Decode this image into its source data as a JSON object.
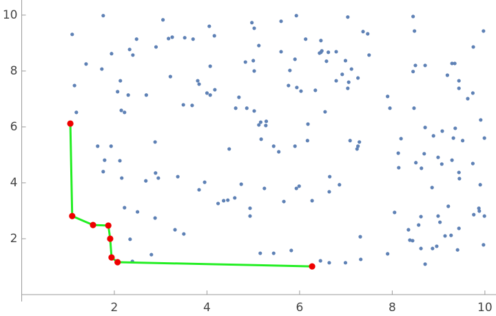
{
  "chart_data": {
    "type": "scatter",
    "xlim": [
      0,
      10.24
    ],
    "ylim": [
      0,
      10.54
    ],
    "xticks": [
      2,
      4,
      6,
      8,
      10
    ],
    "yticks": [
      2,
      4,
      6,
      8,
      10
    ],
    "series": [
      {
        "type": "scatter",
        "color": "#5e81b5",
        "x": [
          1.09,
          1.14,
          1.18,
          1.39,
          1.73,
          1.76,
          1.94,
          2.13,
          2.07,
          2.15,
          2.22,
          2.3,
          2.33,
          2.4,
          2.48,
          2.69,
          2.9,
          3.05,
          3.17,
          3.25,
          3.21,
          3.52,
          3.7,
          3.8,
          3.83,
          3.49,
          3.68,
          4.0,
          4.07,
          4.17,
          4.05,
          4.16,
          4.07,
          4.62,
          4.69,
          4.86,
          4.83,
          4.97,
          5.02,
          5.0,
          5.02,
          5.02,
          5.12,
          5.12,
          5.16,
          5.28,
          5.27,
          5.17,
          5.44,
          5.55,
          5.6,
          5.6,
          5.79,
          5.76,
          5.9,
          5.93,
          5.94,
          6.03,
          6.13,
          6.18,
          6.17,
          5.9,
          6.34,
          6.46,
          6.46,
          6.43,
          6.48,
          6.58,
          6.62,
          6.55,
          6.79,
          6.79,
          6.92,
          6.99,
          7.04,
          7.06,
          7.04,
          7.12,
          7.26,
          7.37,
          7.47,
          7.5,
          7.09,
          7.29,
          7.26,
          7.24,
          7.9,
          7.95,
          8.19,
          8.14,
          8.13,
          8.45,
          8.48,
          8.5,
          8.45,
          8.71,
          8.47,
          8.71,
          8.51,
          8.63,
          8.69,
          8.89,
          8.99,
          9.07,
          9.08,
          9.19,
          9.35,
          9.29,
          9.44,
          9.44,
          9.36,
          9.32,
          9.52,
          9.29,
          9.44,
          9.45,
          9.63,
          9.75,
          9.74,
          9.74,
          9.91,
          9.97,
          9.99,
          9.9,
          9.87,
          9.88,
          9.76,
          9.99,
          9.97,
          9.21,
          8.86,
          8.99,
          9.03,
          9.14,
          9.27,
          9.44,
          9.41,
          8.96,
          8.87,
          8.62,
          8.57,
          8.62,
          8.71,
          8.35,
          8.38,
          8.44,
          8.05,
          7.9,
          7.31,
          7.32,
          6.99,
          6.64,
          6.45,
          6.27,
          5.66,
          5.82,
          5.44,
          5.15,
          5.24,
          5.93,
          5.99,
          6.86,
          6.64,
          6.65,
          4.93,
          4.93,
          4.74,
          4.6,
          4.45,
          4.36,
          4.24,
          3.95,
          3.83,
          4.48,
          3.37,
          2.89,
          2.95,
          2.68,
          2.88,
          2.88,
          3.31,
          3.5,
          2.5,
          2.22,
          2.16,
          2.12,
          1.93,
          1.64,
          1.79,
          1.76,
          2.34,
          2.39,
          2.8
        ],
        "values": [
          9.31,
          7.48,
          6.52,
          8.25,
          8.07,
          9.98,
          8.62,
          7.65,
          7.26,
          6.59,
          6.52,
          7.14,
          8.77,
          8.57,
          9.14,
          7.14,
          8.86,
          9.83,
          9.16,
          9.21,
          7.8,
          9.19,
          9.14,
          7.65,
          7.53,
          6.79,
          6.77,
          7.21,
          7.14,
          7.33,
          9.6,
          9.26,
          8.17,
          6.67,
          7.06,
          6.67,
          8.32,
          9.73,
          9.53,
          8.37,
          8.0,
          6.57,
          8.91,
          6.07,
          6.17,
          6.2,
          6.05,
          5.56,
          5.31,
          5.11,
          9.78,
          8.69,
          8.02,
          7.48,
          8.42,
          9.98,
          7.41,
          7.28,
          9.14,
          6.1,
          5.51,
          5.31,
          7.31,
          9.09,
          8.67,
          8.64,
          8.72,
          8.35,
          8.67,
          6.54,
          8.69,
          7.65,
          7.88,
          8.37,
          9.93,
          7.6,
          7.38,
          8.07,
          7.75,
          9.41,
          9.33,
          8.57,
          5.51,
          5.46,
          5.31,
          5.21,
          7.09,
          6.67,
          5.58,
          4.54,
          5.06,
          9.95,
          9.43,
          8.2,
          7.98,
          8.2,
          6.67,
          5.98,
          4.72,
          4.52,
          5.04,
          5.68,
          4.91,
          4.67,
          5.85,
          7.85,
          8.27,
          8.27,
          7.65,
          7.38,
          5.95,
          5.6,
          5.51,
          4.81,
          4.37,
          4.15,
          7.01,
          8.86,
          7.21,
          4.69,
          6.25,
          9.43,
          5.6,
          3.93,
          3.09,
          2.99,
          2.86,
          2.81,
          1.78,
          3.16,
          3.83,
          2.81,
          2.59,
          2.1,
          2.12,
          2.37,
          1.6,
          1.73,
          1.65,
          2.79,
          2.49,
          1.65,
          1.09,
          2.32,
          1.95,
          1.93,
          2.94,
          1.46,
          2.07,
          1.26,
          1.14,
          1.14,
          1.21,
          3.36,
          3.33,
          1.58,
          1.48,
          1.48,
          3.8,
          3.8,
          3.88,
          3.93,
          3.68,
          4.22,
          3.09,
          2.81,
          3.95,
          3.46,
          3.38,
          3.36,
          3.26,
          4.02,
          3.75,
          5.21,
          4.22,
          4.35,
          4.17,
          4.07,
          5.46,
          2.74,
          2.32,
          2.17,
          2.96,
          3.11,
          4.17,
          4.79,
          5.31,
          5.31,
          4.81,
          4.4,
          1.98,
          1.19,
          1.43
        ]
      },
      {
        "type": "line",
        "color": "#22ee22",
        "marker_color": "#ee0000",
        "x": [
          1.05,
          1.09,
          1.54,
          1.87,
          1.91,
          1.94,
          2.07,
          6.27
        ],
        "values": [
          6.12,
          2.81,
          2.49,
          2.47,
          2.0,
          1.33,
          1.16,
          1.01
        ]
      }
    ]
  }
}
